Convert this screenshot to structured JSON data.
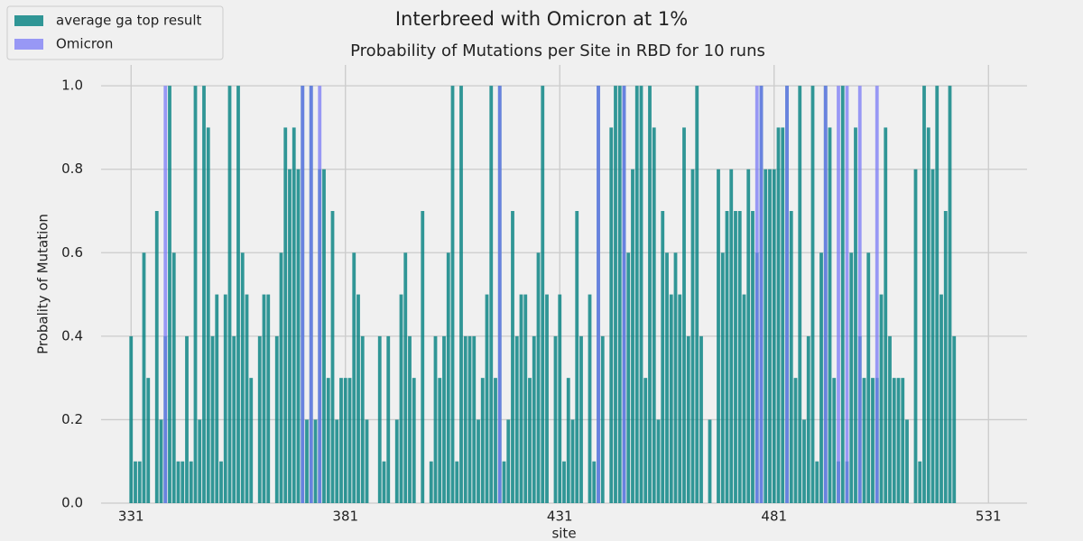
{
  "chart_data": {
    "type": "bar",
    "title": "Interbreed with Omicron at 1%",
    "subtitle": "Probability of Mutations per Site in RBD for 10 runs",
    "x_label": "site",
    "y_label": "Probality of Mutation",
    "xlim": [
      324,
      540
    ],
    "xticks": [
      331,
      381,
      431,
      481,
      531
    ],
    "ylim": [
      0,
      1.05
    ],
    "yticks": [
      {
        "value": 0,
        "label": "0.0"
      },
      0.2,
      0.4,
      0.6,
      0.8,
      {
        "value": 1,
        "label": "1.0"
      }
    ],
    "grid": true,
    "legend": "upper left",
    "bar_width": 0.8,
    "series": [
      {
        "name": "average ga top result",
        "color": "#008080",
        "opacity": 0.8,
        "x": [
          331,
          332,
          333,
          334,
          335,
          336,
          337,
          338,
          339,
          340,
          341,
          342,
          343,
          344,
          345,
          346,
          347,
          348,
          349,
          350,
          351,
          352,
          353,
          354,
          355,
          356,
          357,
          358,
          359,
          360,
          361,
          362,
          363,
          364,
          365,
          366,
          367,
          368,
          369,
          370,
          371,
          372,
          373,
          374,
          375,
          376,
          377,
          378,
          379,
          380,
          381,
          382,
          383,
          384,
          385,
          386,
          387,
          388,
          389,
          390,
          391,
          392,
          393,
          394,
          395,
          396,
          397,
          398,
          399,
          400,
          401,
          402,
          403,
          404,
          405,
          406,
          407,
          408,
          409,
          410,
          411,
          412,
          413,
          414,
          415,
          416,
          417,
          418,
          419,
          420,
          421,
          422,
          423,
          424,
          425,
          426,
          427,
          428,
          429,
          430,
          431,
          432,
          433,
          434,
          435,
          436,
          437,
          438,
          439,
          440,
          441,
          442,
          443,
          444,
          445,
          446,
          447,
          448,
          449,
          450,
          451,
          452,
          453,
          454,
          455,
          456,
          457,
          458,
          459,
          460,
          461,
          462,
          463,
          464,
          465,
          466,
          467,
          468,
          469,
          470,
          471,
          472,
          473,
          474,
          475,
          476,
          477,
          478,
          479,
          480,
          481,
          482,
          483,
          484,
          485,
          486,
          487,
          488,
          489,
          490,
          491,
          492,
          493,
          494,
          495,
          496,
          497,
          498,
          499,
          500,
          501,
          502,
          503,
          504,
          505,
          506,
          507,
          508,
          509,
          510,
          511,
          512,
          513,
          514,
          515,
          516,
          517,
          518,
          519,
          520,
          521,
          522,
          523
        ],
        "values": [
          0.4,
          0.1,
          0.1,
          0.6,
          0.3,
          0,
          0.7,
          0.2,
          0.4,
          1,
          0.6,
          0.1,
          0.1,
          0.4,
          0.1,
          1,
          0.2,
          1,
          0.9,
          0.4,
          0.5,
          0.1,
          0.5,
          1,
          0.4,
          1,
          0.6,
          0.5,
          0.3,
          0,
          0.4,
          0.5,
          0.5,
          0,
          0.4,
          0.6,
          0.9,
          0.8,
          0.9,
          0.8,
          1,
          0.2,
          1,
          0.2,
          0.8,
          0.8,
          0.3,
          0.7,
          0.2,
          0.3,
          0.3,
          0.3,
          0.6,
          0.5,
          0.4,
          0.2,
          0,
          0,
          0.4,
          0.1,
          0.4,
          0,
          0.2,
          0.5,
          0.6,
          0.4,
          0.3,
          0,
          0.7,
          0,
          0.1,
          0.4,
          0.3,
          0.4,
          0.6,
          1,
          0.1,
          1,
          0.4,
          0.4,
          0.4,
          0.2,
          0.3,
          0.5,
          1,
          0.3,
          1,
          0.1,
          0.2,
          0.7,
          0.4,
          0.5,
          0.5,
          0.3,
          0.4,
          0.6,
          1,
          0.5,
          0,
          0.4,
          0.5,
          0.1,
          0.3,
          0.2,
          0.7,
          0.4,
          0,
          0.5,
          0.1,
          1,
          0.4,
          0,
          0.9,
          1,
          1,
          1,
          0.6,
          0.8,
          1,
          1,
          0.3,
          1,
          0.9,
          0.2,
          0.7,
          0.6,
          0.5,
          0.6,
          0.5,
          0.9,
          0.4,
          0.8,
          1,
          0.4,
          0,
          0.2,
          0,
          0.8,
          0.6,
          0.7,
          0.8,
          0.7,
          0.7,
          0.5,
          0.8,
          0.7,
          0.6,
          1,
          0.8,
          0.8,
          0.8,
          0.9,
          0.9,
          1,
          0.7,
          0.3,
          1,
          0.2,
          0.4,
          1,
          0.1,
          0.6,
          1,
          0.9,
          0.3,
          0.1,
          1,
          0.1,
          0.6,
          0.9,
          0.4,
          0.3,
          0.6,
          0.3,
          0.3,
          0.5,
          0.9,
          0.4,
          0.3,
          0.3,
          0.3,
          0.2,
          0,
          0.8,
          0.1,
          1,
          0.9,
          0.8,
          1,
          0.5,
          0.7,
          1,
          0.4
        ]
      },
      {
        "name": "Omicron",
        "color": "#7b7bf7",
        "opacity": 0.75,
        "x": [
          339,
          371,
          373,
          375,
          417,
          440,
          446,
          477,
          478,
          484,
          493,
          496,
          498,
          501,
          505
        ],
        "values": [
          1,
          1,
          1,
          1,
          1,
          1,
          1,
          1,
          1,
          1,
          1,
          1,
          1,
          1,
          1
        ]
      }
    ]
  }
}
